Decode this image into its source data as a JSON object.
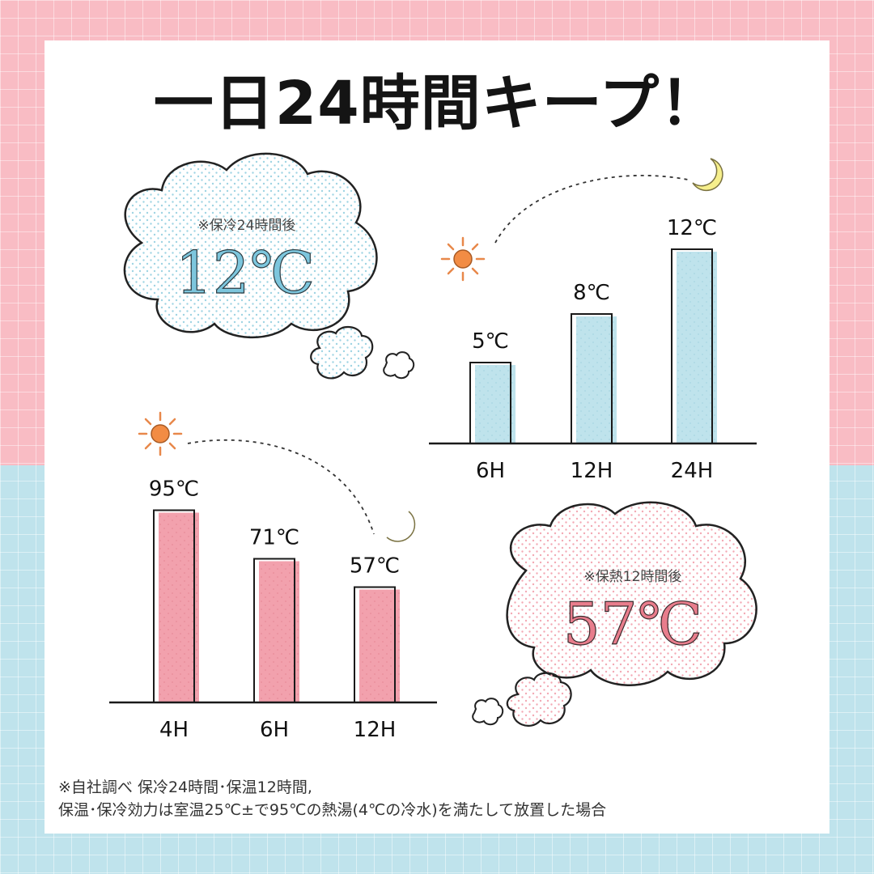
{
  "title": "一日24時間キープ！",
  "cold_bubble": {
    "caption": "※保冷24時間後",
    "value": "12℃",
    "color": "#7dc6dd"
  },
  "hot_bubble": {
    "caption": "※保熱12時間後",
    "value": "57℃",
    "color": "#e87d8c"
  },
  "chart_data": [
    {
      "type": "bar",
      "categories": [
        "6H",
        "12H",
        "24H"
      ],
      "values": [
        5,
        8,
        12
      ],
      "data_labels": [
        "5℃",
        "8℃",
        "12℃"
      ],
      "color": "#bfe3ec",
      "title": "",
      "xlabel": "",
      "ylabel": "",
      "grid": false
    },
    {
      "type": "bar",
      "categories": [
        "4H",
        "6H",
        "12H"
      ],
      "values": [
        95,
        71,
        57
      ],
      "data_labels": [
        "95℃",
        "71℃",
        "57℃"
      ],
      "color": "#f2a1ad",
      "title": "",
      "xlabel": "",
      "ylabel": "",
      "grid": false
    }
  ],
  "footnote": {
    "line1": "※自社調べ 保冷24時間･保温12時間,",
    "line2": "保温･保冷効力は室温25℃±で95℃の熱湯(4℃の冷水)を満たして放置した場合"
  }
}
